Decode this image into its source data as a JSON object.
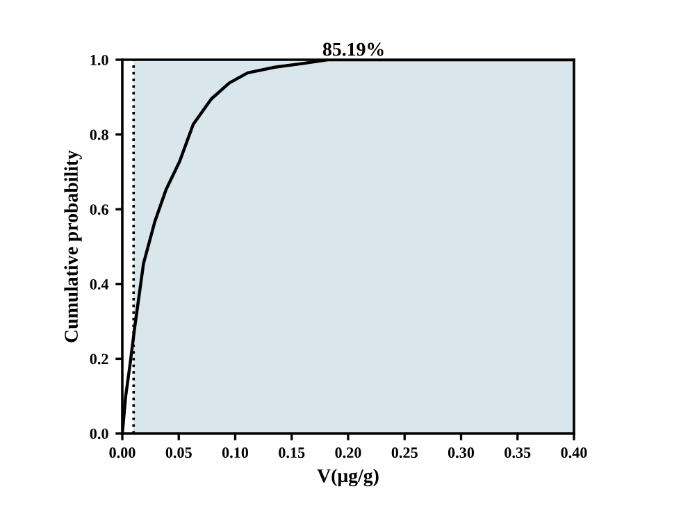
{
  "chart_data": {
    "type": "line",
    "xlabel": "V(μg/g)",
    "ylabel": "Cumulative probability",
    "series": [
      {
        "color": "#000000",
        "x": [
          0,
          0.003,
          0.0068,
          0.0108,
          0.0188,
          0.0288,
          0.0388,
          0.0508,
          0.0628,
          0.0788,
          0.0948,
          0.111,
          0.135,
          0.16,
          0.182,
          0.25,
          0.3,
          0.35,
          0.4
        ],
        "values": [
          0.0,
          0.1,
          0.183,
          0.28,
          0.455,
          0.567,
          0.653,
          0.728,
          0.827,
          0.895,
          0.938,
          0.965,
          0.98,
          0.99,
          1.0,
          1.0,
          1.0,
          1.0,
          1.0
        ]
      }
    ],
    "xlim": [
      0,
      0.4
    ],
    "ylim": [
      0,
      1.0
    ],
    "xticks": [
      {
        "value": 0,
        "label": "0.00"
      },
      0.05,
      {
        "value": 0.1,
        "label": "0.10"
      },
      0.15,
      {
        "value": 0.2,
        "label": "0.20"
      },
      0.25,
      {
        "value": 0.3,
        "label": "0.30"
      },
      0.35,
      {
        "value": 0.4,
        "label": "0.40"
      }
    ],
    "yticks": [
      {
        "value": 0,
        "label": "0.0"
      },
      0.2,
      0.4,
      0.6,
      0.8,
      {
        "value": 1,
        "label": "1.0"
      }
    ],
    "ref_lines": [
      {
        "axis": "x",
        "value": 0.01,
        "color": "#000000",
        "line_style": "dotted"
      }
    ],
    "bands": [
      {
        "axis": "x",
        "from": 0.01,
        "to": 0.4,
        "label": "85.19%",
        "color": "#d9e6ec"
      }
    ],
    "grid": false,
    "legend": false,
    "line_style": "solid",
    "marker": "none"
  }
}
